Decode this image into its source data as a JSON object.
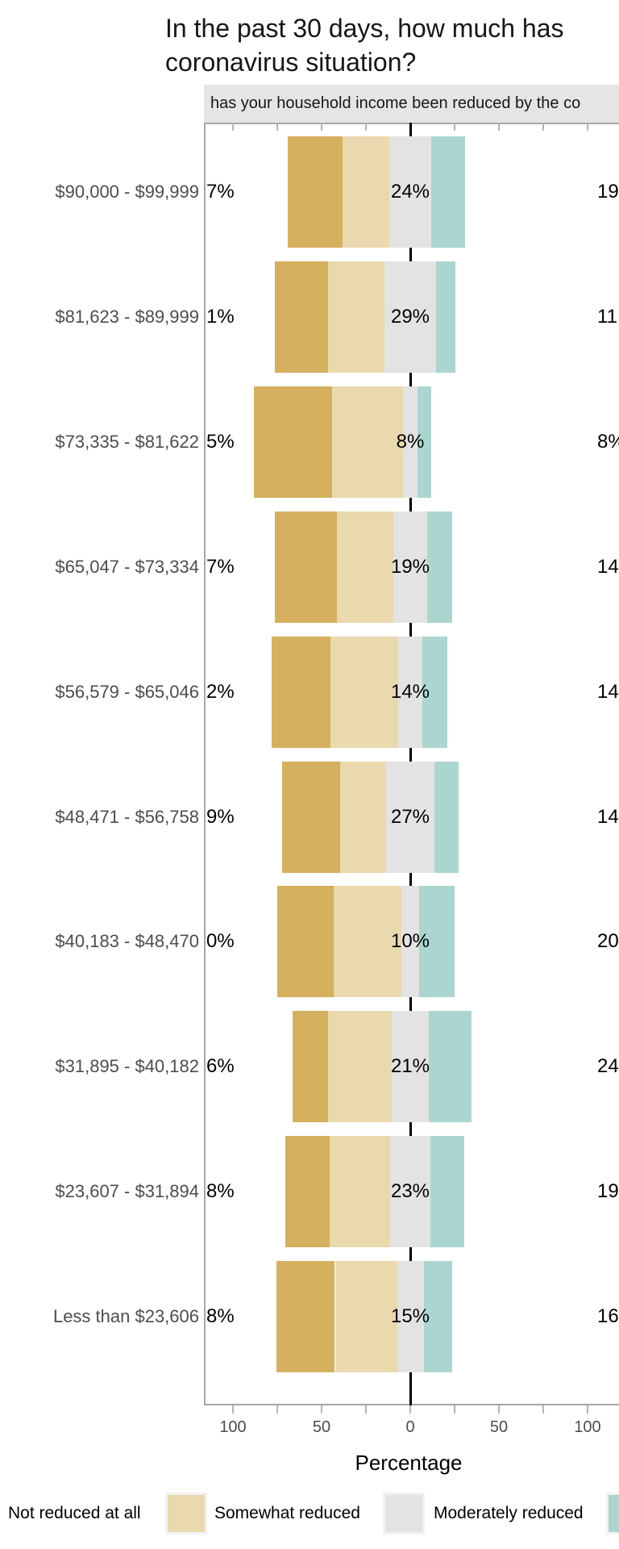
{
  "title": {
    "line1": "In the past 30 days, how much has",
    "line2": "coronavirus situation?"
  },
  "strip_label": "has your household income been reduced by the co",
  "axis": {
    "xlabel": "Percentage",
    "ticks": [
      "100",
      "50",
      "0",
      "50",
      "100"
    ]
  },
  "legend": {
    "items": [
      {
        "label": "Not reduced at all",
        "color": "#d5b05e",
        "key_visible": false,
        "label_visible": true
      },
      {
        "label": "Somewhat reduced",
        "color": "#e9d9ad",
        "key_visible": true,
        "label_visible": true
      },
      {
        "label": "Moderately reduced",
        "color": "#e3e3e3",
        "key_visible": true,
        "label_visible": true
      },
      {
        "label": "",
        "color": "#abd6d0",
        "key_visible": true,
        "label_visible": false
      }
    ]
  },
  "colors": {
    "gold": "#d5b05e",
    "tan": "#e9d9ad",
    "gray": "#e3e3e3",
    "teal": "#abd6d0",
    "panel_border": "#a6a6a6",
    "strip_bg": "#e5e5e5",
    "zero_line": "#000000",
    "axis_text": "#4d4d4d"
  },
  "chart_data": {
    "type": "bar",
    "subtype": "diverging-stacked-likert",
    "orientation": "horizontal",
    "categories": [
      "$90,000 - $99,999",
      "$81,623 - $89,999",
      "$73,335 - $81,622",
      "$65,047 - $73,334",
      "$56,579 - $65,046",
      "$48,471 - $56,758",
      "$40,183 - $48,470",
      "$31,895 - $40,182",
      "$23,607 - $31,894",
      "Less than $23,606"
    ],
    "series": [
      {
        "name": "Not reduced at all",
        "color": "#d5b05e",
        "values": [
          31,
          30,
          44,
          35,
          33,
          33,
          32,
          20,
          25,
          33
        ]
      },
      {
        "name": "Somewhat reduced",
        "color": "#e9d9ad",
        "values": [
          26,
          32,
          40,
          32,
          38,
          26,
          38,
          36,
          34,
          35
        ]
      },
      {
        "name": "Moderately reduced",
        "color": "#e3e3e3",
        "values": [
          24,
          29,
          8,
          19,
          14,
          27,
          10,
          21,
          23,
          15
        ]
      },
      {
        "name": "",
        "color": "#abd6d0",
        "values": [
          19,
          11,
          8,
          14,
          14,
          14,
          20,
          24,
          19,
          16
        ]
      }
    ],
    "labels": {
      "left_visible": [
        "7%",
        "1%",
        "5%",
        "7%",
        "2%",
        "9%",
        "0%",
        "6%",
        "8%",
        "8%"
      ],
      "center": [
        "24%",
        "29%",
        "8%",
        "19%",
        "14%",
        "27%",
        "10%",
        "21%",
        "23%",
        "15%"
      ],
      "right_visible": [
        "19",
        "11",
        "8%",
        "14",
        "14",
        "14",
        "20",
        "24",
        "19",
        "16"
      ]
    },
    "xlabel": "Percentage",
    "x_tick_labels": [
      "100",
      "50",
      "0",
      "50",
      "100"
    ],
    "neutral_centered_on_zero": true,
    "grid": false,
    "legend_position": "bottom"
  }
}
